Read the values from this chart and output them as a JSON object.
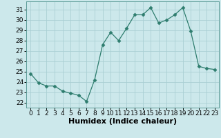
{
  "x": [
    0,
    1,
    2,
    3,
    4,
    5,
    6,
    7,
    8,
    9,
    10,
    11,
    12,
    13,
    14,
    15,
    16,
    17,
    18,
    19,
    20,
    21,
    22,
    23
  ],
  "y": [
    24.8,
    23.9,
    23.6,
    23.6,
    23.1,
    22.9,
    22.7,
    22.1,
    24.2,
    27.6,
    28.8,
    28.0,
    29.2,
    30.5,
    30.5,
    31.2,
    29.7,
    30.0,
    30.5,
    31.2,
    28.9,
    25.5,
    25.3,
    25.2
  ],
  "xlabel": "Humidex (Indice chaleur)",
  "xlim": [
    -0.5,
    23.5
  ],
  "ylim": [
    21.5,
    31.8
  ],
  "yticks": [
    22,
    23,
    24,
    25,
    26,
    27,
    28,
    29,
    30,
    31
  ],
  "xticks": [
    0,
    1,
    2,
    3,
    4,
    5,
    6,
    7,
    8,
    9,
    10,
    11,
    12,
    13,
    14,
    15,
    16,
    17,
    18,
    19,
    20,
    21,
    22,
    23
  ],
  "line_color": "#2e7d6e",
  "marker": "D",
  "marker_size": 2.5,
  "bg_color": "#cce8eb",
  "grid_color": "#aacfd4",
  "axis_fontsize": 7,
  "tick_fontsize": 6.5,
  "xlabel_fontsize": 8
}
